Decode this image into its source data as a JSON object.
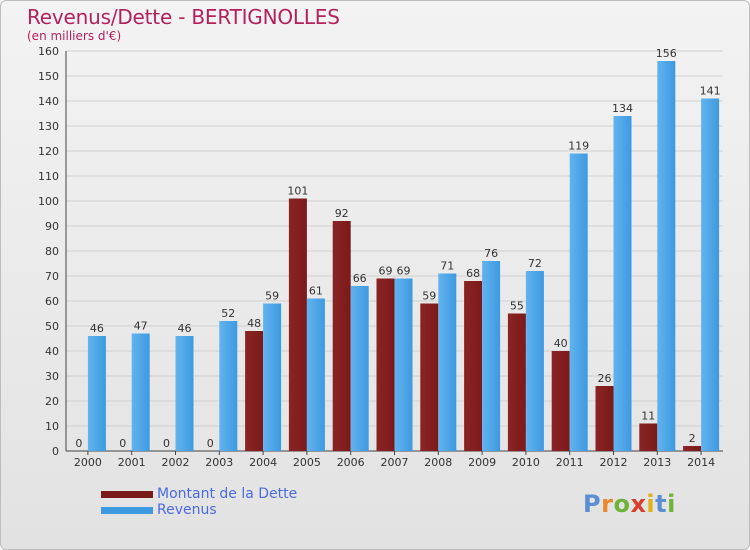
{
  "header": {
    "title": "Revenus/Dette - BERTIGNOLLES",
    "unit": "(en milliers d'€)"
  },
  "logo": {
    "text": "Proxiti",
    "letters": [
      "P",
      "r",
      "o",
      "x",
      "i",
      "t",
      "i"
    ],
    "colors": [
      "#5b8fd1",
      "#e88a2c",
      "#6fb43a",
      "#d9402b",
      "#e0b21a",
      "#5b8fd1",
      "#6fb43a"
    ]
  },
  "colors": {
    "dette": "#7b1a1a",
    "revenus": "#3d9ae0",
    "legend_text": "#4b6be0",
    "title": "#b2225a"
  },
  "chart_data": {
    "type": "bar",
    "categories": [
      "2000",
      "2001",
      "2002",
      "2003",
      "2004",
      "2005",
      "2006",
      "2007",
      "2008",
      "2009",
      "2010",
      "2011",
      "2012",
      "2013",
      "2014"
    ],
    "series": [
      {
        "name": "Montant de la Dette",
        "values": [
          0,
          0,
          0,
          0,
          48,
          101,
          92,
          69,
          59,
          68,
          55,
          40,
          26,
          11,
          2
        ]
      },
      {
        "name": "Revenus",
        "values": [
          46,
          47,
          46,
          52,
          59,
          61,
          66,
          69,
          71,
          76,
          72,
          119,
          134,
          156,
          141
        ]
      }
    ],
    "title": "Revenus/Dette - BERTIGNOLLES",
    "subtitle": "(en milliers d'€)",
    "xlabel": "",
    "ylabel": "",
    "ylim": [
      0,
      160
    ],
    "yticks": [
      0,
      10,
      20,
      30,
      40,
      50,
      60,
      70,
      80,
      90,
      100,
      110,
      120,
      130,
      140,
      150,
      160
    ],
    "grid": true,
    "legend_position": "bottom-left"
  }
}
